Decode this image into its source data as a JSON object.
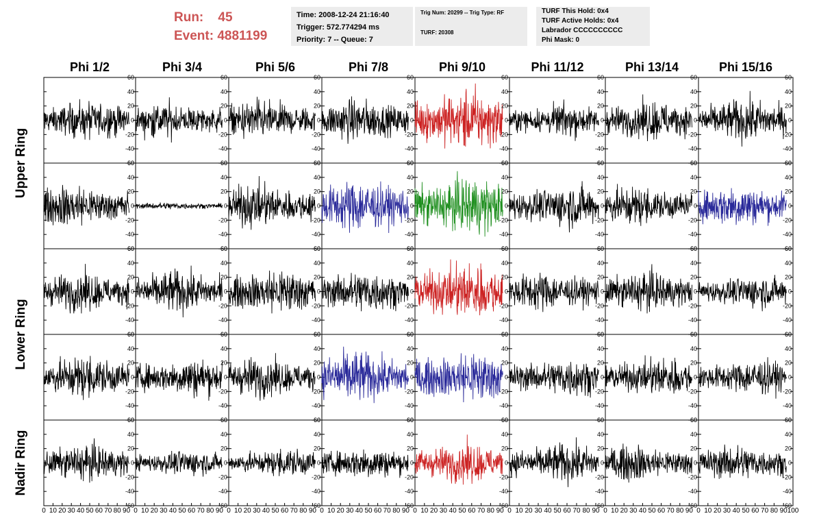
{
  "header": {
    "run_label": "Run:",
    "run_value": "45",
    "event_label": "Event:",
    "event_value": "4881199"
  },
  "info_time": {
    "line1": "Time: 2008-12-24 21:16:40",
    "line2": "Trigger: 572.774294 ms",
    "line3": "Priority: 7 -- Queue: 7"
  },
  "info_trig": {
    "line1": "Trig Num: 20299 -- Trig Type: RF",
    "line2": "TURF: 20308"
  },
  "info_turf": {
    "line1": "TURF This Hold: 0x4",
    "line2": "TURF Active Holds: 0x4",
    "line3": "Labrador CCCCCCCCCC",
    "line4": "Phi Mask: 0"
  },
  "chart_data": {
    "type": "line",
    "columns": [
      "Phi 1/2",
      "Phi 3/4",
      "Phi 5/6",
      "Phi 7/8",
      "Phi 9/10",
      "Phi 11/12",
      "Phi 13/14",
      "Phi 15/16"
    ],
    "ring_labels": [
      {
        "label": "Upper Ring",
        "rows": [
          0,
          1
        ]
      },
      {
        "label": "Lower Ring",
        "rows": [
          2,
          3
        ]
      },
      {
        "label": "Nadir Ring",
        "rows": [
          4
        ]
      }
    ],
    "xlim": [
      0,
      100
    ],
    "ylim": [
      -60,
      60
    ],
    "yticks": [
      -60,
      -40,
      -20,
      0,
      20,
      40,
      60
    ],
    "xticks": [
      0,
      10,
      20,
      30,
      40,
      50,
      60,
      70,
      80,
      90,
      100
    ],
    "samples_per_trace": 260,
    "colors": {
      "black": "#000000",
      "red": "#cc2222",
      "blue": "#2a2a9a",
      "green": "#1f8f1f"
    },
    "traces": [
      [
        "black",
        "black",
        "black",
        "black",
        "red",
        "black",
        "black",
        "black"
      ],
      [
        "black",
        "black",
        "black",
        "blue",
        "green",
        "black",
        "black",
        "blue"
      ],
      [
        "black",
        "black",
        "black",
        "black",
        "red",
        "black",
        "black",
        "black"
      ],
      [
        "black",
        "black",
        "black",
        "blue",
        "blue",
        "black",
        "black",
        "black"
      ],
      [
        "black",
        "black",
        "black",
        "black",
        "red",
        "black",
        "black",
        "black"
      ]
    ],
    "amplitudes": [
      [
        11,
        10,
        11,
        12,
        17,
        9,
        11,
        12
      ],
      [
        12,
        2,
        12,
        15,
        16,
        12,
        11,
        12
      ],
      [
        11,
        12,
        13,
        12,
        16,
        11,
        11,
        9
      ],
      [
        12,
        11,
        11,
        15,
        15,
        11,
        11,
        10
      ],
      [
        10,
        7,
        8,
        9,
        11,
        11,
        10,
        10
      ]
    ]
  }
}
